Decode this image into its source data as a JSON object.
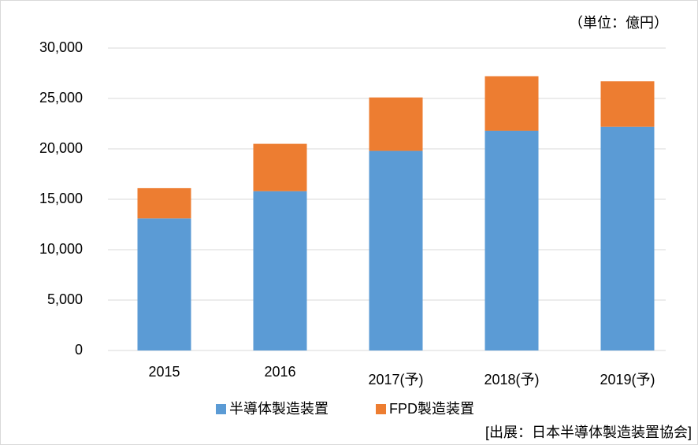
{
  "chart_data": {
    "type": "bar",
    "stacked": true,
    "unit_label": "（単位：億円）",
    "source": "[出展：日本半導体製造装置協会]",
    "categories": [
      "2015",
      "2016",
      "2017(予)",
      "2018(予)",
      "2019(予)"
    ],
    "series": [
      {
        "name": "半導体製造装置",
        "color": "#5b9bd5",
        "values": [
          13100,
          15800,
          19800,
          21800,
          22200
        ]
      },
      {
        "name": "FPD製造装置",
        "color": "#ed7d31",
        "values": [
          3000,
          4700,
          5300,
          5400,
          4500
        ]
      }
    ],
    "ylim": [
      0,
      30000
    ],
    "yticks": [
      0,
      {
        "value": 5000,
        "label": "5,000"
      },
      {
        "value": 10000,
        "label": "10,000"
      },
      {
        "value": 15000,
        "label": "15,000"
      },
      {
        "value": 20000,
        "label": "20,000"
      },
      {
        "value": 25000,
        "label": "25,000"
      },
      {
        "value": 30000,
        "label": "30,000"
      }
    ],
    "grid": true,
    "legend": "bottom"
  }
}
